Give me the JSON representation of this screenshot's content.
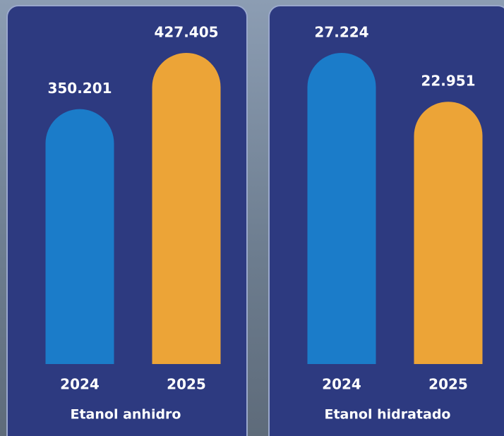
{
  "chart_data": [
    {
      "type": "bar",
      "title": "Etanol anhidro",
      "categories": [
        "2024",
        "2025"
      ],
      "values": [
        350201,
        427405
      ],
      "value_labels": [
        "350.201",
        "427.405"
      ],
      "colors": [
        "#1b7cc9",
        "#eca437"
      ]
    },
    {
      "type": "bar",
      "title": "Etanol hidratado",
      "categories": [
        "2024",
        "2025"
      ],
      "values": [
        27224,
        22951
      ],
      "value_labels": [
        "27.224",
        "22.951"
      ],
      "colors": [
        "#1b7cc9",
        "#eca437"
      ]
    }
  ]
}
